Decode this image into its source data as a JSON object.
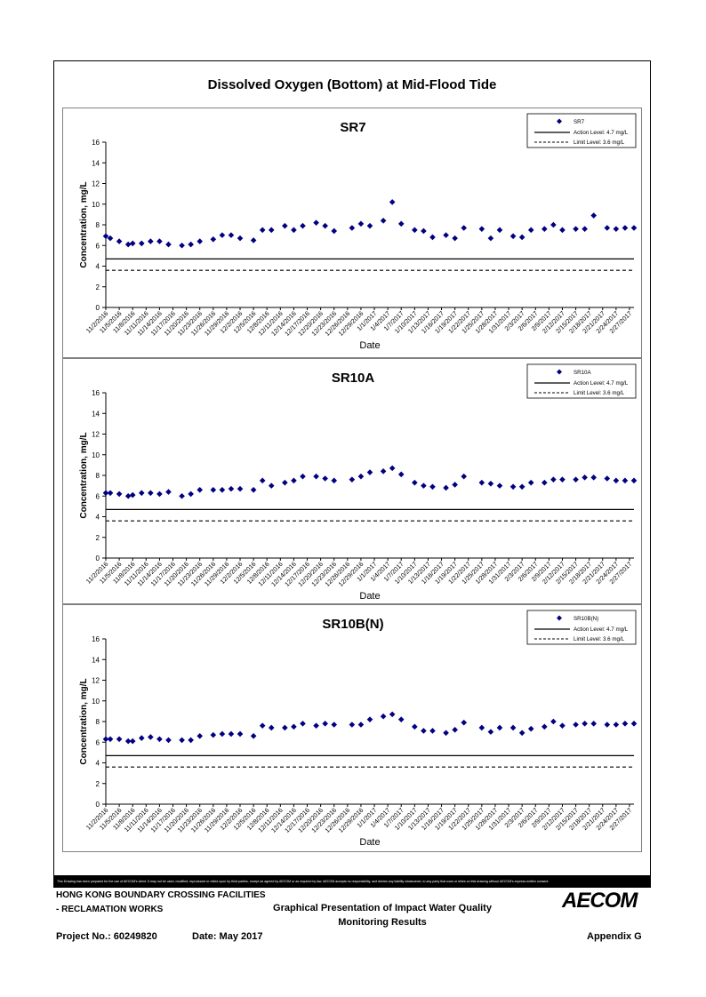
{
  "page_title": "Dissolved Oxygen (Bottom) at Mid-Flood Tide",
  "dates": [
    "11/2/2016",
    "11/5/2016",
    "11/8/2016",
    "11/11/2016",
    "11/14/2016",
    "11/17/2016",
    "11/20/2016",
    "11/23/2016",
    "11/26/2016",
    "11/29/2016",
    "12/2/2016",
    "12/5/2016",
    "12/8/2016",
    "12/11/2016",
    "12/14/2016",
    "12/17/2016",
    "12/20/2016",
    "12/23/2016",
    "12/26/2016",
    "12/29/2016",
    "1/1/2017",
    "1/4/2017",
    "1/7/2017",
    "1/10/2017",
    "1/13/2017",
    "1/16/2017",
    "1/19/2017",
    "1/22/2017",
    "1/25/2017",
    "1/28/2017",
    "1/31/2017",
    "2/3/2017",
    "2/6/2017",
    "2/9/2017",
    "2/12/2017",
    "2/15/2017",
    "2/18/2017",
    "2/21/2017",
    "2/24/2017",
    "2/27/2017"
  ],
  "chart_data": [
    {
      "type": "scatter",
      "title": "SR7",
      "xlabel": "Date",
      "ylabel": "Concentration, mg/L",
      "ylim": [
        0,
        16
      ],
      "yticks": [
        0,
        2,
        4,
        6,
        8,
        10,
        12,
        14,
        16
      ],
      "series": [
        {
          "name": "SR7",
          "marker": "diamond",
          "color": "#000080",
          "x": [
            "11/2/2016",
            "11/3/2016",
            "11/5/2016",
            "11/7/2016",
            "11/8/2016",
            "11/10/2016",
            "11/12/2016",
            "11/14/2016",
            "11/16/2016",
            "11/19/2016",
            "11/21/2016",
            "11/23/2016",
            "11/26/2016",
            "11/28/2016",
            "11/30/2016",
            "12/2/2016",
            "12/5/2016",
            "12/7/2016",
            "12/9/2016",
            "12/12/2016",
            "12/14/2016",
            "12/16/2016",
            "12/19/2016",
            "12/21/2016",
            "12/23/2016",
            "12/27/2016",
            "12/29/2016",
            "12/31/2016",
            "1/3/2017",
            "1/5/2017",
            "1/7/2017",
            "1/10/2017",
            "1/12/2017",
            "1/14/2017",
            "1/17/2017",
            "1/19/2017",
            "1/21/2017",
            "1/25/2017",
            "1/27/2017",
            "1/29/2017",
            "2/1/2017",
            "2/3/2017",
            "2/5/2017",
            "2/8/2017",
            "2/10/2017",
            "2/12/2017",
            "2/15/2017",
            "2/17/2017",
            "2/19/2017",
            "2/22/2017",
            "2/24/2017",
            "2/26/2017",
            "2/28/2017"
          ],
          "y": [
            6.9,
            6.7,
            6.4,
            6.1,
            6.2,
            6.2,
            6.4,
            6.4,
            6.1,
            6.0,
            6.1,
            6.4,
            6.6,
            7.0,
            7.0,
            6.7,
            6.5,
            7.5,
            7.5,
            7.9,
            7.5,
            7.9,
            8.2,
            7.9,
            7.4,
            7.7,
            8.1,
            7.9,
            8.4,
            10.2,
            8.1,
            7.5,
            7.4,
            6.8,
            7.0,
            6.7,
            7.7,
            7.6,
            6.7,
            7.5,
            6.9,
            6.8,
            7.5,
            7.6,
            8.0,
            7.5,
            7.6,
            7.6,
            8.9,
            7.7,
            7.6,
            7.7,
            7.7
          ]
        },
        {
          "name": "Action Level: 4.7 mg/L",
          "style": "solid",
          "value": 4.7
        },
        {
          "name": "Limit Level: 3.6 mg/L",
          "style": "dashed",
          "value": 3.6
        }
      ]
    },
    {
      "type": "scatter",
      "title": "SR10A",
      "xlabel": "Date",
      "ylabel": "Concentration, mg/L",
      "ylim": [
        0,
        16
      ],
      "yticks": [
        0,
        2,
        4,
        6,
        8,
        10,
        12,
        14,
        16
      ],
      "series": [
        {
          "name": "SR10A",
          "marker": "diamond",
          "color": "#000080",
          "x": [
            "11/2/2016",
            "11/3/2016",
            "11/5/2016",
            "11/7/2016",
            "11/8/2016",
            "11/10/2016",
            "11/12/2016",
            "11/14/2016",
            "11/16/2016",
            "11/19/2016",
            "11/21/2016",
            "11/23/2016",
            "11/26/2016",
            "11/28/2016",
            "11/30/2016",
            "12/2/2016",
            "12/5/2016",
            "12/7/2016",
            "12/9/2016",
            "12/12/2016",
            "12/14/2016",
            "12/16/2016",
            "12/19/2016",
            "12/21/2016",
            "12/23/2016",
            "12/27/2016",
            "12/29/2016",
            "12/31/2016",
            "1/3/2017",
            "1/5/2017",
            "1/7/2017",
            "1/10/2017",
            "1/12/2017",
            "1/14/2017",
            "1/17/2017",
            "1/19/2017",
            "1/21/2017",
            "1/25/2017",
            "1/27/2017",
            "1/29/2017",
            "2/1/2017",
            "2/3/2017",
            "2/5/2017",
            "2/8/2017",
            "2/10/2017",
            "2/12/2017",
            "2/15/2017",
            "2/17/2017",
            "2/19/2017",
            "2/22/2017",
            "2/24/2017",
            "2/26/2017",
            "2/28/2017"
          ],
          "y": [
            6.3,
            6.3,
            6.2,
            6.0,
            6.1,
            6.3,
            6.3,
            6.2,
            6.4,
            6.0,
            6.2,
            6.6,
            6.6,
            6.6,
            6.7,
            6.7,
            6.6,
            7.5,
            7.0,
            7.3,
            7.5,
            7.9,
            7.9,
            7.7,
            7.5,
            7.6,
            7.9,
            8.3,
            8.4,
            8.7,
            8.1,
            7.3,
            7.0,
            6.9,
            6.8,
            7.1,
            7.9,
            7.3,
            7.2,
            7.0,
            6.9,
            6.9,
            7.3,
            7.3,
            7.6,
            7.6,
            7.6,
            7.8,
            7.8,
            7.7,
            7.5,
            7.5,
            7.5
          ]
        },
        {
          "name": "Action Level: 4.7 mg/L",
          "style": "solid",
          "value": 4.7
        },
        {
          "name": "Limit Level: 3.6 mg/L",
          "style": "dashed",
          "value": 3.6
        }
      ]
    },
    {
      "type": "scatter",
      "title": "SR10B(N)",
      "xlabel": "Date",
      "ylabel": "Concentration, mg/L",
      "ylim": [
        0,
        16
      ],
      "yticks": [
        0,
        2,
        4,
        6,
        8,
        10,
        12,
        14,
        16
      ],
      "series": [
        {
          "name": "SR10B(N)",
          "marker": "diamond",
          "color": "#000080",
          "x": [
            "11/2/2016",
            "11/3/2016",
            "11/5/2016",
            "11/7/2016",
            "11/8/2016",
            "11/10/2016",
            "11/12/2016",
            "11/14/2016",
            "11/16/2016",
            "11/19/2016",
            "11/21/2016",
            "11/23/2016",
            "11/26/2016",
            "11/28/2016",
            "11/30/2016",
            "12/2/2016",
            "12/5/2016",
            "12/7/2016",
            "12/9/2016",
            "12/12/2016",
            "12/14/2016",
            "12/16/2016",
            "12/19/2016",
            "12/21/2016",
            "12/23/2016",
            "12/27/2016",
            "12/29/2016",
            "12/31/2016",
            "1/3/2017",
            "1/5/2017",
            "1/7/2017",
            "1/10/2017",
            "1/12/2017",
            "1/14/2017",
            "1/17/2017",
            "1/19/2017",
            "1/21/2017",
            "1/25/2017",
            "1/27/2017",
            "1/29/2017",
            "2/1/2017",
            "2/3/2017",
            "2/5/2017",
            "2/8/2017",
            "2/10/2017",
            "2/12/2017",
            "2/15/2017",
            "2/17/2017",
            "2/19/2017",
            "2/22/2017",
            "2/24/2017",
            "2/26/2017",
            "2/28/2017"
          ],
          "y": [
            6.3,
            6.3,
            6.3,
            6.1,
            6.1,
            6.4,
            6.5,
            6.3,
            6.2,
            6.2,
            6.2,
            6.6,
            6.7,
            6.8,
            6.8,
            6.8,
            6.6,
            7.6,
            7.4,
            7.4,
            7.5,
            7.8,
            7.6,
            7.8,
            7.7,
            7.7,
            7.7,
            8.2,
            8.5,
            8.7,
            8.2,
            7.5,
            7.1,
            7.1,
            6.9,
            7.2,
            7.9,
            7.4,
            7.0,
            7.4,
            7.4,
            6.9,
            7.3,
            7.5,
            8.0,
            7.6,
            7.7,
            7.8,
            7.8,
            7.7,
            7.7,
            7.8,
            7.8
          ]
        },
        {
          "name": "Action Level: 4.7 mg/L",
          "style": "solid",
          "value": 4.7
        },
        {
          "name": "Limit Level: 3.6 mg/L",
          "style": "dashed",
          "value": 3.6
        }
      ]
    }
  ],
  "footer": {
    "disclaimer": "This Drawing has been prepared for the use of AECOM's client. It may not be used, modified, reproduced or relied upon by third parties, except as agreed by AECOM or as required by law. AECOM accepts no responsibility, and denies any liability whatsoever, to any party that uses or relies on this drawing without AECOM's express written consent.",
    "project_line1": "HONG KONG BOUNDARY CROSSING FACILITIES",
    "project_line2": "- RECLAMATION WORKS",
    "doc_title_line1": "Graphical Presentation of Impact Water Quality",
    "doc_title_line2": "Monitoring Results",
    "project_no": "Project No.: 60249820",
    "date": "Date: May 2017",
    "appendix": "Appendix G",
    "logo": "AECOM"
  }
}
